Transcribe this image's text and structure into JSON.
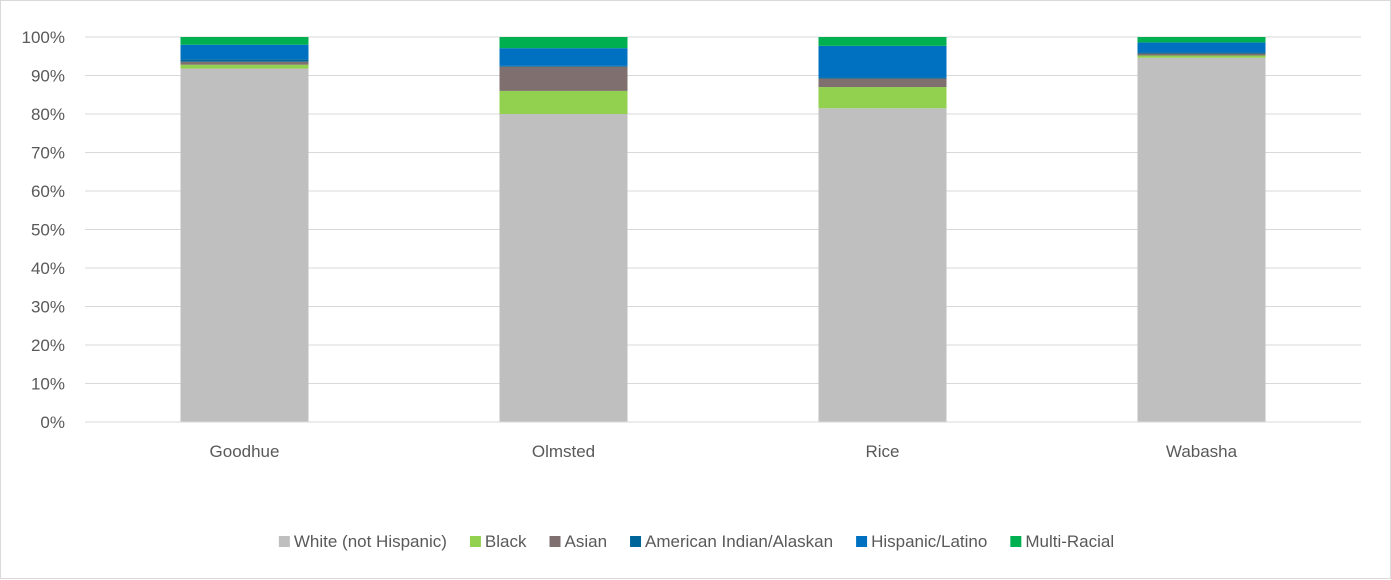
{
  "chart_data": {
    "type": "bar",
    "stacked": true,
    "percent_stacked": true,
    "categories": [
      "Goodhue",
      "Olmsted",
      "Rice",
      "Wabasha"
    ],
    "ylim": [
      0,
      100
    ],
    "y_ticks": [
      "0%",
      "10%",
      "20%",
      "30%",
      "40%",
      "50%",
      "60%",
      "70%",
      "80%",
      "90%",
      "100%"
    ],
    "grid": true,
    "legend_position": "bottom",
    "series": [
      {
        "name": "White (not Hispanic)",
        "color": "#bfbfbf",
        "values": [
          91.8,
          80.0,
          81.5,
          94.6
        ]
      },
      {
        "name": "Black",
        "color": "#92d050",
        "values": [
          1.0,
          6.0,
          5.5,
          0.6
        ]
      },
      {
        "name": "Asian",
        "color": "#7f6f6f",
        "values": [
          0.8,
          6.3,
          2.2,
          0.5
        ]
      },
      {
        "name": "American Indian/Alaskan",
        "color": "#006699",
        "values": [
          0.6,
          0.2,
          0.3,
          0.3
        ]
      },
      {
        "name": "Hispanic/Latino",
        "color": "#0070c0",
        "values": [
          3.8,
          4.6,
          8.2,
          2.6
        ]
      },
      {
        "name": "Multi-Racial",
        "color": "#00b050",
        "values": [
          2.0,
          2.9,
          2.3,
          1.4
        ]
      }
    ]
  }
}
